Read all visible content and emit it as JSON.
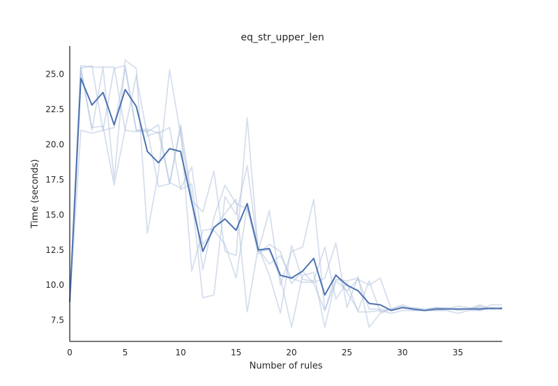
{
  "chart_data": {
    "type": "line",
    "title": "eq_str_upper_len",
    "xlabel": "Number of rules",
    "ylabel": "Time (seconds)",
    "xlim": [
      0,
      39
    ],
    "ylim": [
      6.0,
      27.0
    ],
    "x_ticks": [
      0,
      5,
      10,
      15,
      20,
      25,
      30,
      35
    ],
    "x_tick_labels": [
      "0",
      "5",
      "10",
      "15",
      "20",
      "25",
      "30",
      "35"
    ],
    "y_ticks": [
      7.5,
      10.0,
      12.5,
      15.0,
      17.5,
      20.0,
      22.5,
      25.0
    ],
    "y_tick_labels": [
      "7.5",
      "10.0",
      "12.5",
      "15.0",
      "17.5",
      "20.0",
      "22.5",
      "25.0"
    ],
    "grid": false,
    "x": [
      0,
      1,
      2,
      3,
      4,
      5,
      6,
      7,
      8,
      9,
      10,
      11,
      12,
      13,
      14,
      15,
      16,
      17,
      18,
      19,
      20,
      21,
      22,
      23,
      24,
      25,
      26,
      27,
      28,
      29,
      30,
      31,
      32,
      33,
      34,
      35,
      36,
      37,
      38,
      39
    ],
    "mean_color": "#4c72b0",
    "run_color": "#aebfdc",
    "series": [
      {
        "role": "mean",
        "values": [
          8.8,
          24.7,
          22.8,
          23.7,
          21.4,
          23.9,
          22.7,
          19.5,
          18.7,
          19.7,
          19.5,
          15.9,
          12.4,
          14.1,
          14.7,
          13.9,
          15.8,
          12.5,
          12.6,
          10.7,
          10.5,
          11.0,
          11.9,
          9.3,
          10.7,
          10.0,
          9.6,
          8.7,
          8.6,
          8.2,
          8.4,
          8.3,
          8.2,
          8.3,
          8.3,
          8.3,
          8.3,
          8.3,
          8.35,
          8.35
        ]
      },
      {
        "role": "run",
        "values": [
          8.8,
          25.5,
          21.0,
          25.5,
          17.5,
          26.0,
          25.4,
          13.7,
          18.0,
          25.3,
          20.7,
          16.0,
          15.2,
          18.1,
          12.4,
          12.1,
          21.9,
          12.4,
          12.5,
          10.5,
          7.0,
          10.7,
          10.9,
          7.0,
          10.4,
          10.3,
          10.5,
          8.3,
          8.3,
          8.2,
          8.4,
          8.3,
          8.2,
          8.3,
          8.3,
          8.3,
          8.3,
          8.6,
          8.3,
          8.4
        ]
      },
      {
        "role": "run",
        "values": [
          8.8,
          25.6,
          25.5,
          25.5,
          25.5,
          21.0,
          20.9,
          21.0,
          17.0,
          17.2,
          21.4,
          16.3,
          9.1,
          9.3,
          16.3,
          15.0,
          18.5,
          12.4,
          15.3,
          10.0,
          12.4,
          12.7,
          16.1,
          8.2,
          10.3,
          9.6,
          10.4,
          10.0,
          10.5,
          8.3,
          8.5,
          8.2,
          8.2,
          8.4,
          8.4,
          8.2,
          8.3,
          8.5,
          8.3,
          8.3
        ]
      },
      {
        "role": "run",
        "values": [
          8.8,
          25.4,
          25.6,
          21.0,
          25.4,
          25.6,
          21.0,
          20.9,
          21.4,
          17.2,
          21.2,
          11.0,
          13.9,
          14.0,
          15.1,
          16.1,
          8.1,
          12.7,
          10.7,
          8.0,
          12.8,
          10.4,
          10.3,
          12.7,
          9.0,
          10.2,
          8.1,
          8.1,
          8.2,
          8.0,
          8.2,
          8.2,
          8.2,
          8.2,
          8.3,
          8.3,
          8.3,
          8.4,
          8.3,
          8.3
        ]
      },
      {
        "role": "run",
        "values": [
          8.8,
          21.0,
          20.8,
          21.0,
          21.2,
          25.4,
          21.0,
          21.1,
          20.8,
          21.2,
          16.8,
          17.2,
          11.1,
          14.8,
          17.1,
          15.8,
          15.4,
          12.6,
          11.5,
          12.1,
          10.5,
          10.2,
          10.2,
          10.5,
          13.0,
          8.4,
          10.6,
          7.0,
          8.0,
          8.3,
          8.6,
          8.3,
          8.2,
          8.2,
          8.2,
          8.0,
          8.2,
          8.2,
          8.6,
          8.6
        ]
      },
      {
        "role": "run",
        "values": [
          8.8,
          25.3,
          21.2,
          21.3,
          17.1,
          21.1,
          24.9,
          20.6,
          20.9,
          17.3,
          16.9,
          18.4,
          12.9,
          13.9,
          12.9,
          10.5,
          15.6,
          12.2,
          12.9,
          12.4,
          10.1,
          11.0,
          10.1,
          8.2,
          10.8,
          9.5,
          8.2,
          10.3,
          8.1,
          8.3,
          8.4,
          8.4,
          8.3,
          8.4,
          8.3,
          8.5,
          8.4,
          8.2,
          8.4,
          8.3
        ]
      }
    ]
  }
}
